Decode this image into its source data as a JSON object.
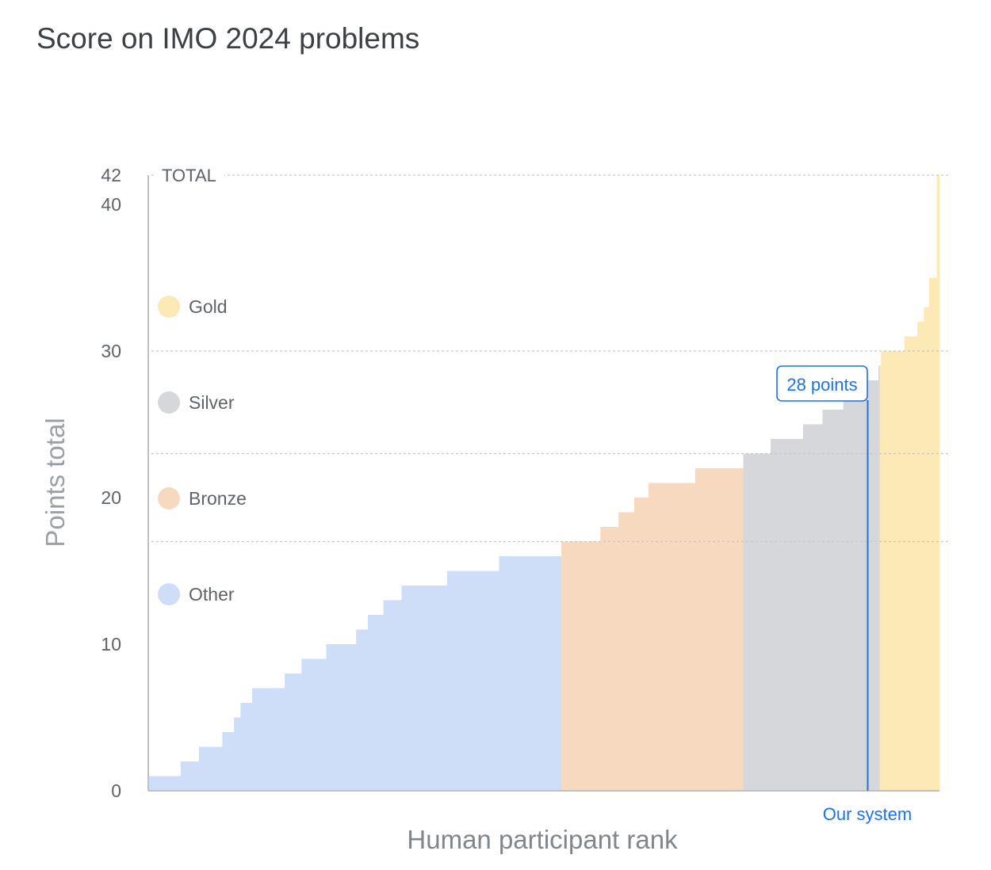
{
  "title": "Score on IMO 2024 problems",
  "chart_data": {
    "type": "bar",
    "title": "Score on IMO 2024 problems",
    "xlabel": "Human participant rank",
    "ylabel": "Points total",
    "ylim": [
      0,
      42
    ],
    "y_ticks": [
      "0",
      "10",
      "20",
      "30",
      "40",
      "42"
    ],
    "reference_lines": [
      {
        "label": "TOTAL",
        "y": 42
      },
      {
        "label": "",
        "y": 30
      },
      {
        "label": "",
        "y": 23
      },
      {
        "label": "",
        "y": 17
      }
    ],
    "legend": [
      {
        "label": "Gold",
        "color": "#fde9b6"
      },
      {
        "label": "Silver",
        "color": "#d6d7da"
      },
      {
        "label": "Bronze",
        "color": "#f6d9bf"
      },
      {
        "label": "Other",
        "color": "#cfdef8"
      }
    ],
    "x_range": [
      0,
      609
    ],
    "groups": [
      {
        "name": "Other",
        "color": "#cfdef8",
        "steps": [
          [
            0,
            25,
            1
          ],
          [
            25,
            39,
            2
          ],
          [
            39,
            57,
            3
          ],
          [
            57,
            66,
            4
          ],
          [
            66,
            71,
            5
          ],
          [
            71,
            80,
            6
          ],
          [
            80,
            105,
            7
          ],
          [
            105,
            118,
            8
          ],
          [
            118,
            137,
            9
          ],
          [
            137,
            160,
            10
          ],
          [
            160,
            169,
            11
          ],
          [
            169,
            181,
            12
          ],
          [
            181,
            195,
            13
          ],
          [
            195,
            230,
            14
          ],
          [
            230,
            270,
            15
          ],
          [
            270,
            318,
            16
          ]
        ]
      },
      {
        "name": "Bronze",
        "color": "#f6d9bf",
        "steps": [
          [
            318,
            348,
            17
          ],
          [
            348,
            362,
            18
          ],
          [
            362,
            374,
            19
          ],
          [
            374,
            385,
            20
          ],
          [
            385,
            421,
            21
          ],
          [
            421,
            458,
            22
          ]
        ]
      },
      {
        "name": "Silver",
        "color": "#d6d7da",
        "steps": [
          [
            458,
            479,
            23
          ],
          [
            479,
            504,
            24
          ],
          [
            504,
            519,
            25
          ],
          [
            519,
            535,
            26
          ],
          [
            535,
            549,
            27
          ],
          [
            549,
            562,
            28
          ],
          [
            562,
            562.01,
            28.5
          ],
          [
            562.01,
            563,
            29
          ]
        ]
      },
      {
        "name": "Gold",
        "color": "#fde9b6",
        "steps": [
          [
            563,
            564,
            29
          ],
          [
            564,
            582,
            30
          ],
          [
            582,
            592,
            31
          ],
          [
            592,
            597,
            32
          ],
          [
            597,
            601,
            33
          ],
          [
            601,
            607,
            35
          ],
          [
            607,
            609,
            42
          ]
        ]
      }
    ],
    "our_system": {
      "label": "Our system",
      "callout": "28 points",
      "y": 28
    }
  }
}
